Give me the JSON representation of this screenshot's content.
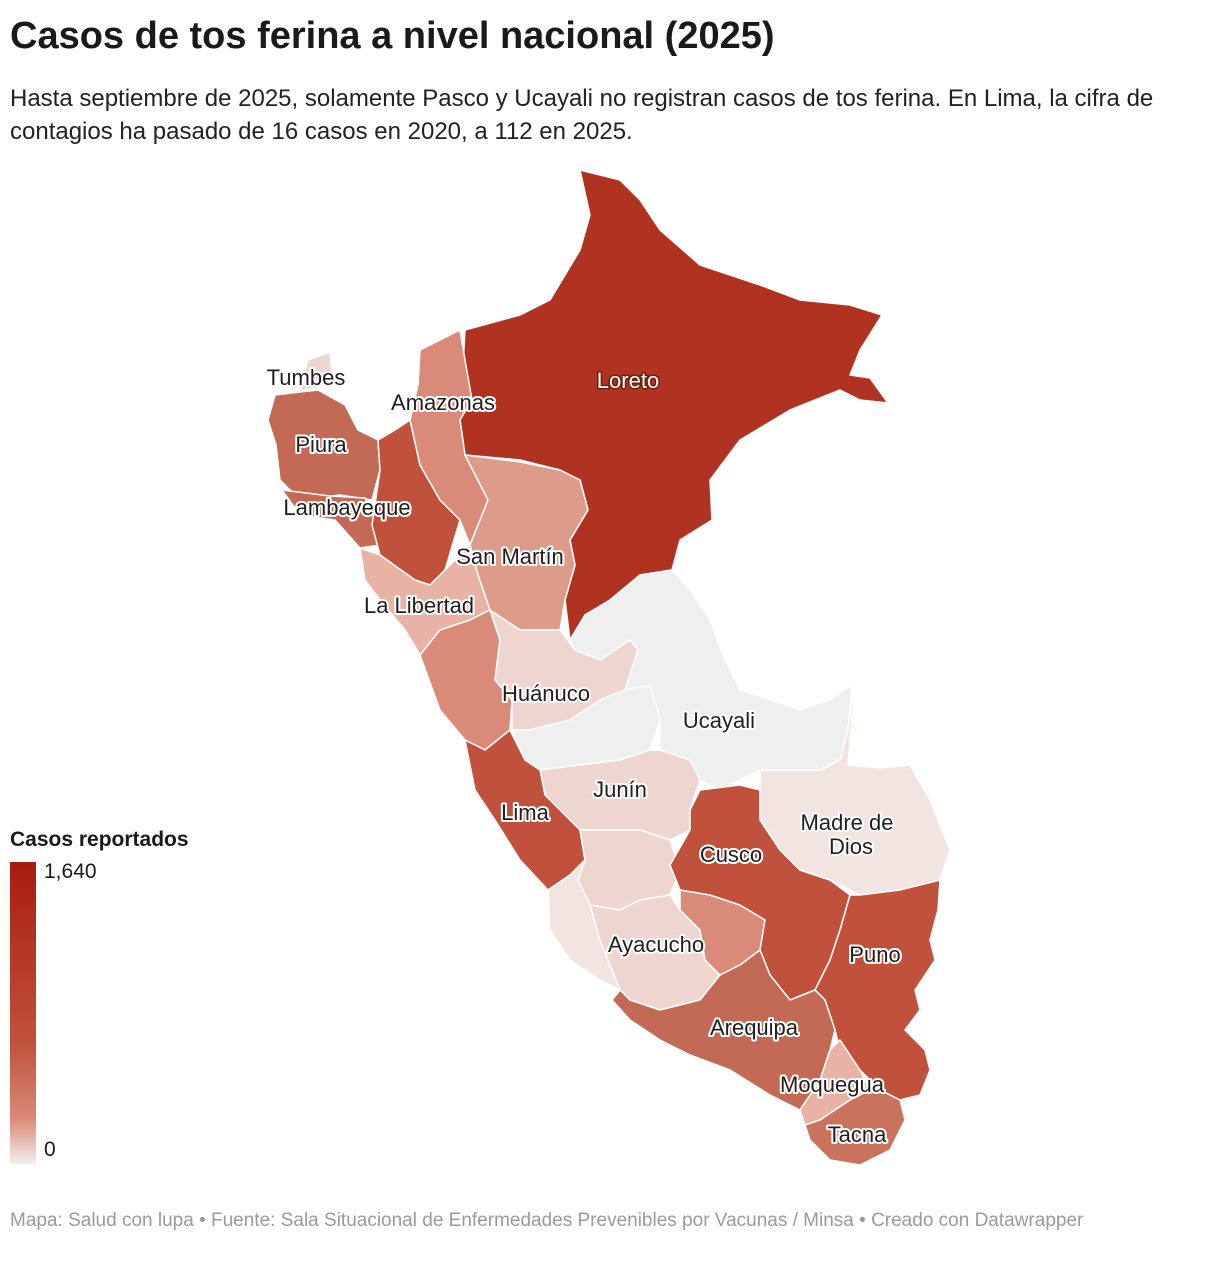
{
  "title": "Casos de tos ferina a nivel nacional (2025)",
  "subtitle": "Hasta septiembre de 2025, solamente Pasco y Ucayali no registran casos de tos ferina. En Lima, la cifra de contagios ha pasado de 16 casos en 2020, a 112 en 2025.",
  "legend": {
    "title": "Casos reportados",
    "max_label": "1,640",
    "min_label": "0",
    "color_high": "#a81c10",
    "color_low": "#f3eeee"
  },
  "colors": {
    "darkest": "#b03220",
    "dark": "#c0513c",
    "medium": "#d98a78",
    "light": "#e6a796",
    "pale": "#edcfc8",
    "zero": "#efefef"
  },
  "regions": {
    "loreto": "Loreto",
    "amazonas": "Amazonas",
    "tumbes": "Tumbes",
    "piura": "Piura",
    "lambayeque": "Lambayeque",
    "san_martin": "San Martín",
    "la_libertad": "La Libertad",
    "huanuco": "Huánuco",
    "ucayali": "Ucayali",
    "junin": "Junín",
    "lima": "Lima",
    "cusco": "Cusco",
    "madre_de_dios_1": "Madre de",
    "madre_de_dios_2": "Dios",
    "ayacucho": "Ayacucho",
    "puno": "Puno",
    "arequipa": "Arequipa",
    "moquegua": "Moquegua",
    "tacna": "Tacna"
  },
  "footer": "Mapa: Salud con lupa • Fuente: Sala Situacional de Enfermedades Prevenibles por Vacunas / Minsa • Creado con Datawrapper"
}
